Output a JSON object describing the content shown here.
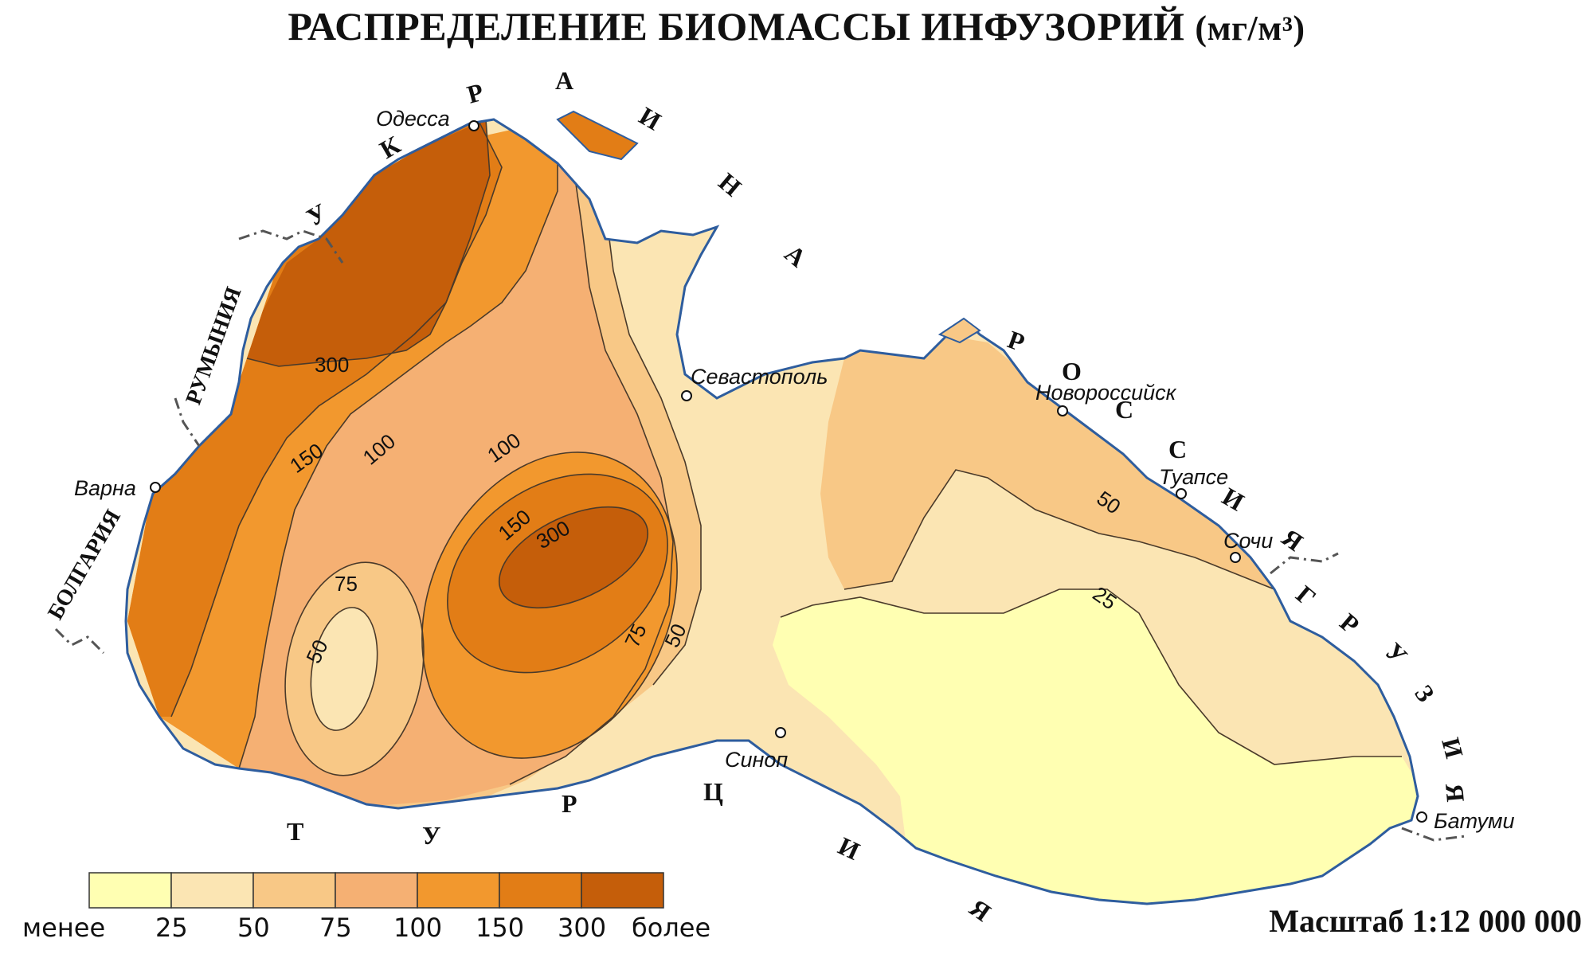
{
  "title": {
    "main": "РАСПРЕДЕЛЕНИЕ БИОМАССЫ ИНФУЗОРИЙ",
    "unit": "(мг/м³)"
  },
  "scale": "Масштаб 1:12 000 000",
  "colors": {
    "lt25": "#FFFFB2",
    "c25_50": "#FBE5B3",
    "c50_75": "#F8C886",
    "c75_100": "#F5B073",
    "c100_150": "#F2982E",
    "c150_300": "#E27D16",
    "gt300": "#C55E0A",
    "coast": "#2E5D9E",
    "contour": "#4A3A2A"
  },
  "legend": {
    "colors": [
      "#FFFFB2",
      "#FBE5B3",
      "#F8C886",
      "#F5B073",
      "#F2982E",
      "#E27D16",
      "#C55E0A"
    ],
    "labels": [
      "менее",
      "25",
      "50",
      "75",
      "100",
      "150",
      "300",
      "более"
    ]
  },
  "cities": {
    "odessa": "Одесса",
    "sevastopol": "Севастополь",
    "novorossiysk": "Новороссийск",
    "tuapse": "Туапсе",
    "sochi": "Сочи",
    "batumi": "Батуми",
    "sinop": "Синоп",
    "varna": "Варна"
  },
  "countries": {
    "ukraine": [
      "У",
      "К",
      "Р",
      "А",
      "И",
      "Н",
      "А"
    ],
    "romania": "РУМЫНИЯ",
    "bulgaria": "БОЛГАРИЯ",
    "russia": [
      "Р",
      "О",
      "С",
      "С",
      "И",
      "Я"
    ],
    "georgia": [
      "Г",
      "Р",
      "У",
      "З",
      "И",
      "Я"
    ],
    "turkey": [
      "Т",
      "У",
      "Р",
      "Ц",
      "И",
      "Я"
    ]
  },
  "contour_labels": {
    "nw300": "300",
    "w150": "150",
    "w100": "100",
    "c100": "100",
    "c150": "150",
    "c300": "300",
    "w75": "75",
    "w50": "50",
    "c75": "75",
    "c50": "50",
    "e50": "50",
    "e25": "25"
  }
}
